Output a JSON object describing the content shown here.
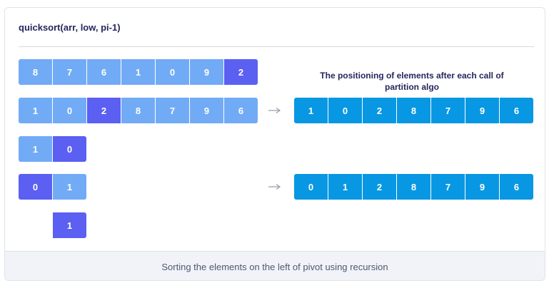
{
  "title": "quicksort(arr, low, pi-1)",
  "right_caption": "The positioning of elements after each call of partition algo",
  "footer_caption": "Sorting the elements on the left of pivot using recursion",
  "colors": {
    "unsorted": "#72abf5",
    "pivot": "#5b5ff2",
    "result": "#0897e2"
  },
  "rows": {
    "row1": [
      "8",
      "7",
      "6",
      "1",
      "0",
      "9",
      "2"
    ],
    "row2": [
      "1",
      "0",
      "2",
      "8",
      "7",
      "9",
      "6"
    ],
    "row3": [
      "1",
      "0"
    ],
    "row4": [
      "0",
      "1"
    ],
    "row5": [
      "1"
    ],
    "result1": [
      "1",
      "0",
      "2",
      "8",
      "7",
      "9",
      "6"
    ],
    "result2": [
      "0",
      "1",
      "2",
      "8",
      "7",
      "9",
      "6"
    ]
  }
}
